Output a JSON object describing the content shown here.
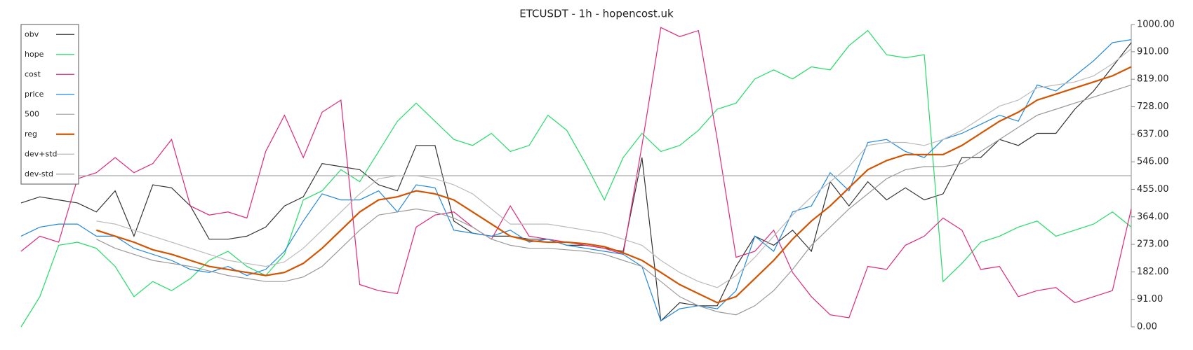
{
  "chart_data": {
    "type": "line",
    "title": "ETCUSDT - 1h - hopencost.uk",
    "ylim": [
      0,
      1000
    ],
    "yticks": [
      {
        "value": 0,
        "label": "0.00"
      },
      {
        "value": 91,
        "label": "91.00"
      },
      {
        "value": 182,
        "label": "182.00"
      },
      {
        "value": 273,
        "label": "273.00"
      },
      {
        "value": 364,
        "label": "364.00"
      },
      {
        "value": 455,
        "label": "455.00"
      },
      {
        "value": 546,
        "label": "546.00"
      },
      {
        "value": 637,
        "label": "637.00"
      },
      {
        "value": 728,
        "label": "728.00"
      },
      {
        "value": 819,
        "label": "819.00"
      },
      {
        "value": 910,
        "label": "910.00"
      },
      {
        "value": 1000,
        "label": "1000.00"
      }
    ],
    "legend": "upper left",
    "series": [
      {
        "name": "obv",
        "color": "#333333",
        "values": [
          410,
          430,
          420,
          410,
          380,
          450,
          300,
          470,
          460,
          400,
          290,
          290,
          300,
          330,
          400,
          430,
          540,
          530,
          520,
          470,
          450,
          600,
          600,
          350,
          310,
          300,
          300,
          290,
          290,
          270,
          270,
          260,
          250,
          560,
          20,
          80,
          70,
          70,
          200,
          300,
          270,
          320,
          250,
          480,
          400,
          480,
          420,
          460,
          420,
          440,
          560,
          560,
          620,
          600,
          640,
          640,
          720,
          780,
          860,
          940
        ]
      },
      {
        "name": "hope",
        "color": "#22dd66",
        "values": [
          0,
          100,
          270,
          280,
          260,
          200,
          100,
          150,
          120,
          160,
          220,
          250,
          200,
          170,
          240,
          420,
          450,
          520,
          480,
          580,
          680,
          740,
          680,
          620,
          600,
          640,
          580,
          600,
          700,
          650,
          540,
          420,
          560,
          640,
          580,
          600,
          650,
          720,
          740,
          820,
          850,
          820,
          860,
          850,
          930,
          980,
          900,
          890,
          900,
          150,
          210,
          280,
          300,
          330,
          350,
          300,
          320,
          340,
          380,
          330
        ]
      },
      {
        "name": "cost",
        "color": "#e0287a",
        "values": [
          250,
          300,
          280,
          490,
          510,
          560,
          510,
          540,
          620,
          400,
          370,
          380,
          360,
          580,
          700,
          560,
          710,
          750,
          140,
          120,
          110,
          330,
          370,
          380,
          330,
          290,
          400,
          300,
          290,
          280,
          270,
          260,
          240,
          600,
          990,
          960,
          980,
          620,
          230,
          250,
          320,
          180,
          100,
          40,
          30,
          200,
          190,
          270,
          300,
          360,
          320,
          190,
          200,
          100,
          120,
          130,
          80,
          100,
          120,
          390
        ]
      },
      {
        "name": "price",
        "color": "#2288dd",
        "values": [
          300,
          330,
          340,
          340,
          300,
          300,
          260,
          240,
          220,
          190,
          180,
          200,
          170,
          190,
          250,
          350,
          440,
          420,
          420,
          450,
          380,
          470,
          460,
          320,
          310,
          300,
          320,
          280,
          290,
          270,
          260,
          250,
          240,
          200,
          20,
          60,
          70,
          60,
          120,
          300,
          250,
          380,
          400,
          510,
          450,
          610,
          620,
          580,
          560,
          620,
          640,
          670,
          700,
          680,
          800,
          780,
          830,
          880,
          940,
          950
        ]
      },
      {
        "name": "500",
        "color": "#aaaaaa",
        "values": [
          500,
          500,
          500,
          500,
          500,
          500,
          500,
          500,
          500,
          500,
          500,
          500,
          500,
          500,
          500,
          500,
          500,
          500,
          500,
          500,
          500,
          500,
          500,
          500,
          500,
          500,
          500,
          500,
          500,
          500,
          500,
          500,
          500,
          500,
          500,
          500,
          500,
          500,
          500,
          500,
          500,
          500,
          500,
          500,
          500,
          500,
          500,
          500,
          500,
          500,
          500,
          500,
          500,
          500,
          500,
          500,
          500,
          500,
          500,
          500
        ]
      },
      {
        "name": "reg",
        "color": "#d35400",
        "values": [
          null,
          null,
          null,
          null,
          320,
          300,
          280,
          255,
          240,
          220,
          200,
          190,
          180,
          170,
          180,
          210,
          260,
          320,
          380,
          420,
          430,
          450,
          440,
          420,
          380,
          340,
          300,
          285,
          280,
          280,
          275,
          265,
          245,
          220,
          180,
          140,
          110,
          80,
          100,
          160,
          220,
          290,
          350,
          400,
          460,
          520,
          550,
          570,
          570,
          570,
          600,
          640,
          680,
          710,
          750,
          770,
          790,
          810,
          830,
          860
        ]
      },
      {
        "name": "dev+std",
        "color": "#bbbbbb",
        "values": [
          null,
          null,
          null,
          null,
          350,
          340,
          320,
          300,
          280,
          260,
          240,
          220,
          210,
          200,
          215,
          260,
          320,
          380,
          440,
          490,
          500,
          500,
          490,
          470,
          440,
          390,
          340,
          340,
          340,
          330,
          320,
          310,
          290,
          270,
          220,
          180,
          150,
          130,
          170,
          230,
          300,
          370,
          430,
          480,
          530,
          600,
          610,
          610,
          600,
          620,
          650,
          690,
          730,
          750,
          790,
          800,
          810,
          830,
          870,
          920
        ]
      },
      {
        "name": "dev-std",
        "color": "#999999",
        "values": [
          null,
          null,
          null,
          null,
          290,
          260,
          240,
          220,
          210,
          200,
          185,
          170,
          160,
          150,
          150,
          165,
          200,
          260,
          320,
          370,
          380,
          390,
          380,
          360,
          330,
          290,
          270,
          260,
          260,
          255,
          250,
          240,
          220,
          200,
          150,
          100,
          70,
          50,
          40,
          70,
          120,
          190,
          270,
          330,
          390,
          440,
          490,
          520,
          530,
          530,
          540,
          580,
          620,
          660,
          700,
          720,
          740,
          760,
          780,
          800
        ]
      }
    ]
  }
}
